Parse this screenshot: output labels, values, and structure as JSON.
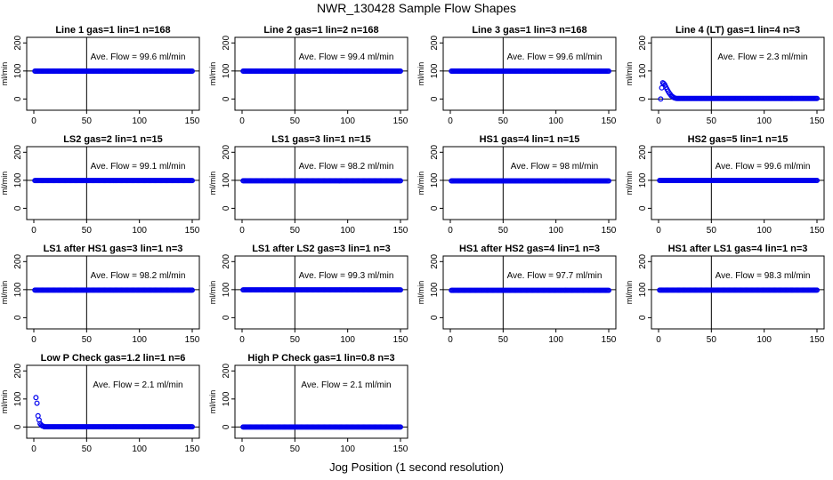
{
  "figure": {
    "title": "NWR_130428  Sample Flow Shapes",
    "xlabel": "Jog Position (1 second resolution)"
  },
  "chart_data": [
    {
      "type": "scatter",
      "title": "Line 1 gas=1 lin=1 n=168",
      "ylabel": "ml/min",
      "annotation": "Ave. Flow = 99.6  ml/min",
      "xlim": [
        0,
        150
      ],
      "ylim": [
        -40,
        220
      ],
      "xticks": [
        0,
        50,
        100,
        150
      ],
      "yticks": [
        0,
        100,
        200
      ],
      "vline_x": 50,
      "hline_y": 100,
      "series": [
        {
          "x_range": [
            1,
            150
          ],
          "value": 99.6
        }
      ]
    },
    {
      "type": "scatter",
      "title": "Line 2 gas=1 lin=2 n=168",
      "ylabel": "ml/min",
      "annotation": "Ave. Flow = 99.4  ml/min",
      "xlim": [
        0,
        150
      ],
      "ylim": [
        -40,
        220
      ],
      "xticks": [
        0,
        50,
        100,
        150
      ],
      "yticks": [
        0,
        100,
        200
      ],
      "vline_x": 50,
      "hline_y": 100,
      "series": [
        {
          "x_range": [
            1,
            150
          ],
          "value": 99.4
        }
      ]
    },
    {
      "type": "scatter",
      "title": "Line 3 gas=1 lin=3 n=168",
      "ylabel": "ml/min",
      "annotation": "Ave. Flow = 99.6  ml/min",
      "xlim": [
        0,
        150
      ],
      "ylim": [
        -40,
        220
      ],
      "xticks": [
        0,
        50,
        100,
        150
      ],
      "yticks": [
        0,
        100,
        200
      ],
      "vline_x": 50,
      "hline_y": 100,
      "series": [
        {
          "x_range": [
            1,
            150
          ],
          "value": 99.6
        }
      ]
    },
    {
      "type": "scatter",
      "title": "Line 4 (LT) gas=1 lin=4 n=3",
      "ylabel": "ml/min",
      "annotation": "Ave. Flow = 2.3  ml/min",
      "xlim": [
        0,
        150
      ],
      "ylim": [
        -40,
        220
      ],
      "xticks": [
        0,
        50,
        100,
        150
      ],
      "yticks": [
        0,
        100,
        200
      ],
      "vline_x": 50,
      "hline_y": 0,
      "points": [
        [
          2,
          0
        ],
        [
          3,
          40
        ],
        [
          4,
          58
        ],
        [
          5,
          55
        ],
        [
          6,
          50
        ],
        [
          7,
          42
        ],
        [
          8,
          35
        ],
        [
          9,
          28
        ],
        [
          10,
          22
        ],
        [
          11,
          17
        ],
        [
          12,
          12
        ],
        [
          13,
          9
        ],
        [
          14,
          6
        ],
        [
          15,
          4
        ],
        [
          16,
          3
        ]
      ],
      "series": [
        {
          "x_range": [
            17,
            150
          ],
          "value": 2
        }
      ]
    },
    {
      "type": "scatter",
      "title": "LS2 gas=2 lin=1 n=15",
      "ylabel": "ml/min",
      "annotation": "Ave. Flow = 99.1  ml/min",
      "xlim": [
        0,
        150
      ],
      "ylim": [
        -40,
        220
      ],
      "xticks": [
        0,
        50,
        100,
        150
      ],
      "yticks": [
        0,
        100,
        200
      ],
      "vline_x": 50,
      "hline_y": 100,
      "series": [
        {
          "x_range": [
            1,
            150
          ],
          "value": 99.1
        }
      ]
    },
    {
      "type": "scatter",
      "title": "LS1 gas=3 lin=1 n=15",
      "ylabel": "ml/min",
      "annotation": "Ave. Flow = 98.2  ml/min",
      "xlim": [
        0,
        150
      ],
      "ylim": [
        -40,
        220
      ],
      "xticks": [
        0,
        50,
        100,
        150
      ],
      "yticks": [
        0,
        100,
        200
      ],
      "vline_x": 50,
      "hline_y": 100,
      "series": [
        {
          "x_range": [
            1,
            150
          ],
          "value": 98.2
        }
      ]
    },
    {
      "type": "scatter",
      "title": "HS1 gas=4 lin=1 n=15",
      "ylabel": "ml/min",
      "annotation": "Ave. Flow = 98  ml/min",
      "xlim": [
        0,
        150
      ],
      "ylim": [
        -40,
        220
      ],
      "xticks": [
        0,
        50,
        100,
        150
      ],
      "yticks": [
        0,
        100,
        200
      ],
      "vline_x": 50,
      "hline_y": 100,
      "series": [
        {
          "x_range": [
            1,
            150
          ],
          "value": 98
        }
      ]
    },
    {
      "type": "scatter",
      "title": "HS2 gas=5 lin=1 n=15",
      "ylabel": "ml/min",
      "annotation": "Ave. Flow = 99.6  ml/min",
      "xlim": [
        0,
        150
      ],
      "ylim": [
        -40,
        220
      ],
      "xticks": [
        0,
        50,
        100,
        150
      ],
      "yticks": [
        0,
        100,
        200
      ],
      "vline_x": 50,
      "hline_y": 100,
      "series": [
        {
          "x_range": [
            1,
            150
          ],
          "value": 99.6
        }
      ]
    },
    {
      "type": "scatter",
      "title": "LS1 after HS1 gas=3 lin=1 n=3",
      "ylabel": "ml/min",
      "annotation": "Ave. Flow = 98.2  ml/min",
      "xlim": [
        0,
        150
      ],
      "ylim": [
        -40,
        220
      ],
      "xticks": [
        0,
        50,
        100,
        150
      ],
      "yticks": [
        0,
        100,
        200
      ],
      "vline_x": 50,
      "hline_y": 100,
      "series": [
        {
          "x_range": [
            1,
            150
          ],
          "value": 98.2
        }
      ]
    },
    {
      "type": "scatter",
      "title": "LS1 after LS2 gas=3 lin=1 n=3",
      "ylabel": "ml/min",
      "annotation": "Ave. Flow = 99.3  ml/min",
      "xlim": [
        0,
        150
      ],
      "ylim": [
        -40,
        220
      ],
      "xticks": [
        0,
        50,
        100,
        150
      ],
      "yticks": [
        0,
        100,
        200
      ],
      "vline_x": 50,
      "hline_y": 100,
      "series": [
        {
          "x_range": [
            1,
            150
          ],
          "value": 99.3
        }
      ]
    },
    {
      "type": "scatter",
      "title": "HS1 after HS2 gas=4 lin=1 n=3",
      "ylabel": "ml/min",
      "annotation": "Ave. Flow = 97.7  ml/min",
      "xlim": [
        0,
        150
      ],
      "ylim": [
        -40,
        220
      ],
      "xticks": [
        0,
        50,
        100,
        150
      ],
      "yticks": [
        0,
        100,
        200
      ],
      "vline_x": 50,
      "hline_y": 100,
      "series": [
        {
          "x_range": [
            1,
            150
          ],
          "value": 97.7
        }
      ]
    },
    {
      "type": "scatter",
      "title": "HS1 after LS1 gas=4 lin=1 n=3",
      "ylabel": "ml/min",
      "annotation": "Ave. Flow = 98.3  ml/min",
      "xlim": [
        0,
        150
      ],
      "ylim": [
        -40,
        220
      ],
      "xticks": [
        0,
        50,
        100,
        150
      ],
      "yticks": [
        0,
        100,
        200
      ],
      "vline_x": 50,
      "hline_y": 100,
      "series": [
        {
          "x_range": [
            1,
            150
          ],
          "value": 98.3
        }
      ]
    },
    {
      "type": "scatter",
      "title": "Low P Check gas=1.2 lin=1 n=6",
      "ylabel": "ml/min",
      "annotation": "Ave. Flow = 2.1  ml/min",
      "xlim": [
        0,
        150
      ],
      "ylim": [
        -40,
        220
      ],
      "xticks": [
        0,
        50,
        100,
        150
      ],
      "yticks": [
        0,
        100,
        200
      ],
      "vline_x": 50,
      "hline_y": 0,
      "points": [
        [
          2,
          105
        ],
        [
          3,
          85
        ],
        [
          4,
          40
        ],
        [
          5,
          25
        ],
        [
          6,
          12
        ],
        [
          7,
          7
        ],
        [
          8,
          4
        ],
        [
          9,
          3
        ]
      ],
      "series": [
        {
          "x_range": [
            10,
            150
          ],
          "value": 1
        }
      ]
    },
    {
      "type": "scatter",
      "title": "High P Check gas=1 lin=0.8 n=3",
      "ylabel": "ml/min",
      "annotation": "Ave. Flow = 2.1  ml/min",
      "xlim": [
        0,
        150
      ],
      "ylim": [
        -40,
        220
      ],
      "xticks": [
        0,
        50,
        100,
        150
      ],
      "yticks": [
        0,
        100,
        200
      ],
      "vline_x": 50,
      "hline_y": 0,
      "series": [
        {
          "x_range": [
            1,
            150
          ],
          "value": 0
        }
      ]
    }
  ],
  "style": {
    "point_color": "#0000ee",
    "axis_color": "#000000"
  }
}
